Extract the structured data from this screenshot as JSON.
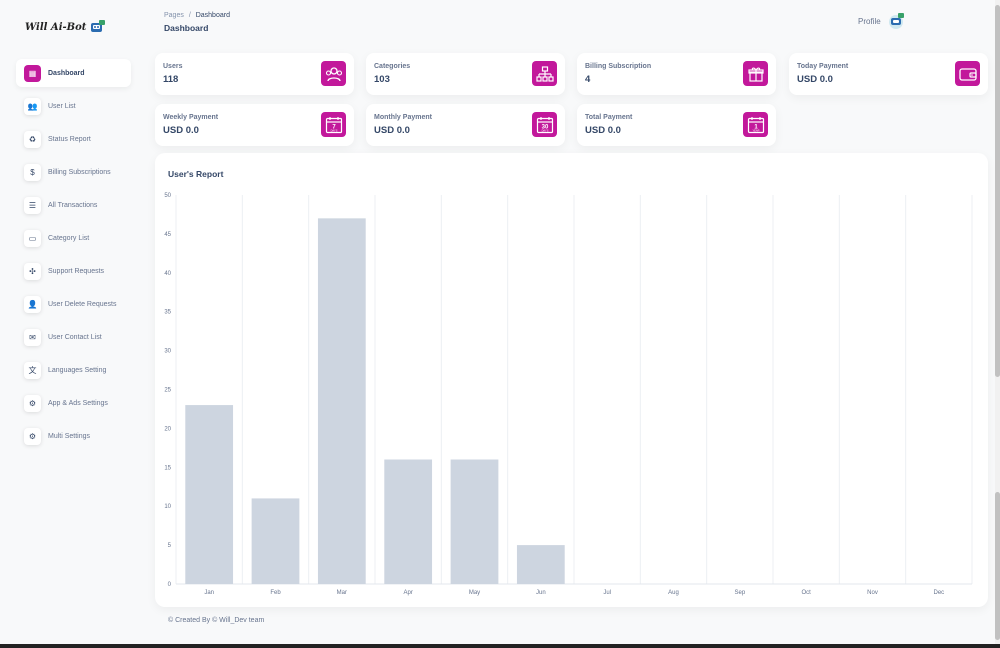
{
  "brand": {
    "name": "Will Ai-Bot"
  },
  "header": {
    "breadcrumb_root": "Pages",
    "breadcrumb_sep": "/",
    "breadcrumb_current": "Dashboard",
    "title": "Dashboard",
    "profile_label": "Profile"
  },
  "sidebar": {
    "items": [
      {
        "label": "Dashboard",
        "icon": "dashboard-icon",
        "glyph": "▦",
        "active": true
      },
      {
        "label": "User List",
        "icon": "users-icon",
        "glyph": "👥"
      },
      {
        "label": "Status Report",
        "icon": "recycle-icon",
        "glyph": "♻"
      },
      {
        "label": "Billing Subscriptions",
        "icon": "dollar-icon",
        "glyph": "$"
      },
      {
        "label": "All Transactions",
        "icon": "list-icon",
        "glyph": "☰"
      },
      {
        "label": "Category List",
        "icon": "card-icon",
        "glyph": "▭"
      },
      {
        "label": "Support Requests",
        "icon": "support-icon",
        "glyph": "✣"
      },
      {
        "label": "User Delete Requests",
        "icon": "user-delete-icon",
        "glyph": "👤"
      },
      {
        "label": "User Contact List",
        "icon": "envelope-icon",
        "glyph": "✉"
      },
      {
        "label": "Languages Setting",
        "icon": "language-icon",
        "glyph": "文"
      },
      {
        "label": "App & Ads Settings",
        "icon": "gear-icon",
        "glyph": "⚙"
      },
      {
        "label": "Multi Settings",
        "icon": "settings-icon",
        "glyph": "⚙"
      }
    ]
  },
  "cards": [
    {
      "label": "Users",
      "value": "118",
      "icon": "users-group-icon"
    },
    {
      "label": "Categories",
      "value": "103",
      "icon": "sitemap-icon"
    },
    {
      "label": "Billing Subscription",
      "value": "4",
      "icon": "gift-icon"
    },
    {
      "label": "Today Payment",
      "value": "USD 0.0",
      "icon": "wallet-icon"
    },
    {
      "label": "Weekly Payment",
      "value": "USD 0.0",
      "icon": "calendar-7-days-icon",
      "cal": "7",
      "cal_sub": "DAYS"
    },
    {
      "label": "Monthly Payment",
      "value": "USD 0.0",
      "icon": "calendar-30-days-icon",
      "cal": "30",
      "cal_sub": "DAYS"
    },
    {
      "label": "Total Payment",
      "value": "USD 0.0",
      "icon": "calendar-1-year-icon",
      "cal": "1",
      "cal_sub": "YEAR"
    }
  ],
  "chart_data": {
    "type": "bar",
    "title": "User's Report",
    "categories": [
      "Jan",
      "Feb",
      "Mar",
      "Apr",
      "May",
      "Jun",
      "Jul",
      "Aug",
      "Sep",
      "Oct",
      "Nov",
      "Dec"
    ],
    "values": [
      23,
      11,
      47,
      16,
      16,
      5,
      0,
      0,
      0,
      0,
      0,
      0
    ],
    "ylim": [
      0,
      50
    ],
    "yticks": [
      0,
      5,
      10,
      15,
      20,
      25,
      30,
      35,
      40,
      45,
      50
    ],
    "grid": "vertical",
    "bar_color": "#cdd5e0"
  },
  "footer": {
    "text": "© Created By © Will_Dev team"
  },
  "colors": {
    "accent": "#c2189b",
    "text": "#344767",
    "muted": "#67748e"
  }
}
